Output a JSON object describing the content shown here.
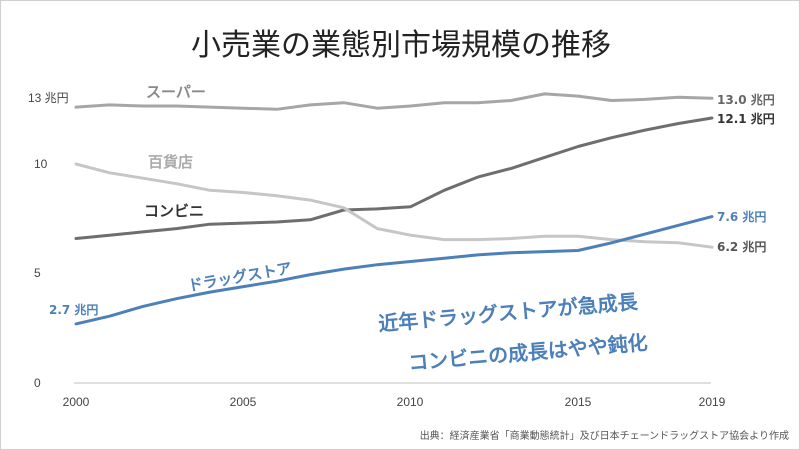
{
  "chart_data": {
    "type": "line",
    "title": "小売業の業態別市場規模の推移",
    "x": [
      2000,
      2001,
      2002,
      2003,
      2004,
      2005,
      2006,
      2007,
      2008,
      2009,
      2010,
      2011,
      2012,
      2013,
      2014,
      2015,
      2016,
      2017,
      2018,
      2019
    ],
    "x_ticks": [
      "2000",
      "2005",
      "2010",
      "2015",
      "2019"
    ],
    "y_ticks": [
      "0",
      "5",
      "10",
      "13 兆円"
    ],
    "ylim": [
      0,
      14
    ],
    "grid": false,
    "series": [
      {
        "name": "スーパー",
        "color": "#a6a6a6",
        "values": [
          12.6,
          12.7,
          12.65,
          12.65,
          12.6,
          12.55,
          12.5,
          12.7,
          12.8,
          12.55,
          12.65,
          12.8,
          12.8,
          12.9,
          13.2,
          13.1,
          12.9,
          12.95,
          13.05,
          13.0
        ],
        "start_label": "",
        "end_label": "13.0 兆円"
      },
      {
        "name": "コンビニ",
        "color": "#6e6e6e",
        "values": [
          6.6,
          6.75,
          6.9,
          7.05,
          7.25,
          7.3,
          7.35,
          7.45,
          7.9,
          7.95,
          8.05,
          8.8,
          9.4,
          9.8,
          10.3,
          10.8,
          11.2,
          11.55,
          11.85,
          12.1
        ],
        "start_label": "",
        "end_label": "12.1 兆円"
      },
      {
        "name": "百貨店",
        "color": "#c6c6c6",
        "values": [
          10.0,
          9.6,
          9.35,
          9.1,
          8.8,
          8.7,
          8.55,
          8.35,
          8.0,
          7.05,
          6.75,
          6.55,
          6.55,
          6.6,
          6.7,
          6.7,
          6.55,
          6.45,
          6.4,
          6.2
        ],
        "start_label": "",
        "end_label": "6.2 兆円"
      },
      {
        "name": "ドラッグストア",
        "color": "#4d80b8",
        "values": [
          2.7,
          3.05,
          3.5,
          3.85,
          4.15,
          4.4,
          4.65,
          4.95,
          5.2,
          5.4,
          5.55,
          5.7,
          5.85,
          5.95,
          6.0,
          6.05,
          6.4,
          6.8,
          7.2,
          7.6
        ],
        "start_label": "2.7 兆円",
        "end_label": "7.6 兆円"
      }
    ],
    "annotations": [
      "近年ドラッグストアが急成長",
      "コンビニの成長はやや鈍化"
    ],
    "source": "出典：経済産業省「商業動態統計」及び日本チェーンドラッグストア協会より作成"
  }
}
